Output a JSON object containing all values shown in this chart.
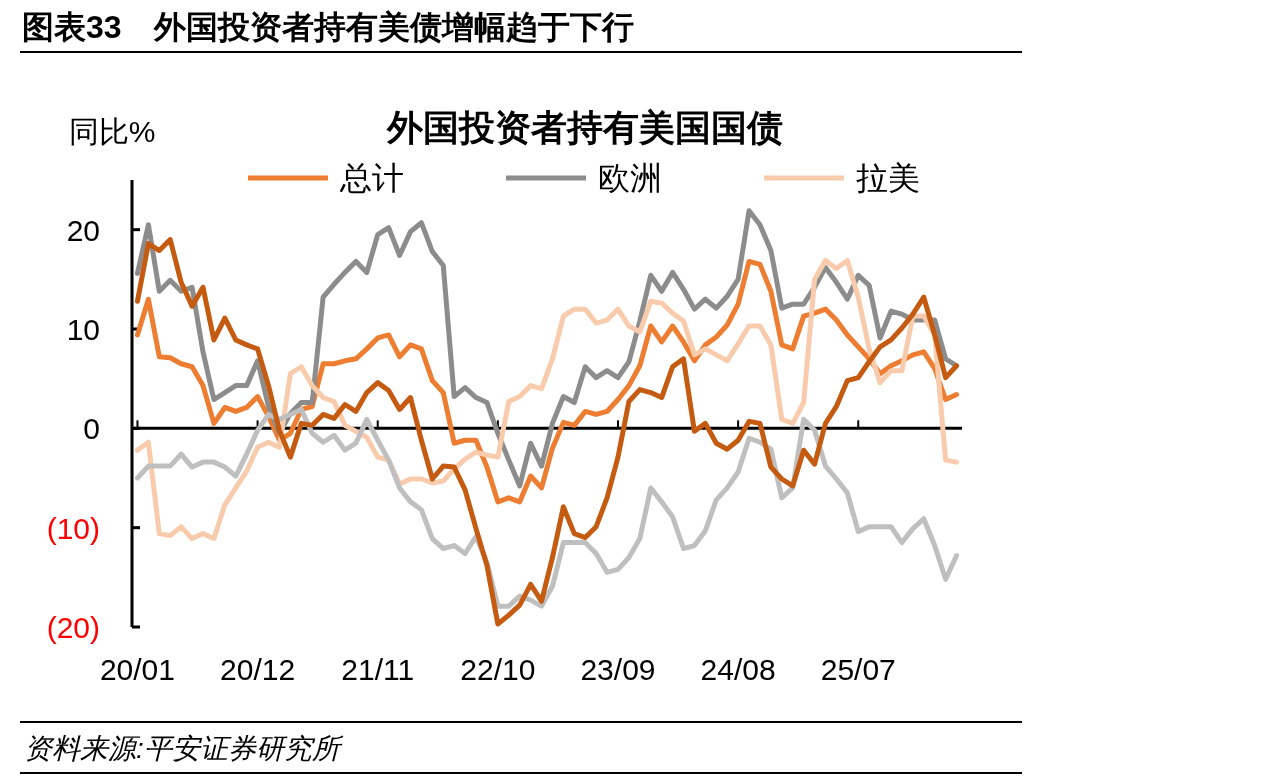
{
  "chart_data": {
    "type": "line",
    "title": "图表33　外国投资者持有美债增幅趋于下行",
    "subtitle": "外国投资者持有美国国债",
    "ylabel": "同比%",
    "annotations": [
      "资料来源:平安证券研究所"
    ],
    "categories": [
      "20/01",
      null,
      null,
      null,
      null,
      null,
      null,
      null,
      null,
      null,
      null,
      "20/12",
      null,
      null,
      null,
      null,
      null,
      null,
      null,
      null,
      null,
      null,
      "21/11",
      null,
      null,
      null,
      null,
      null,
      null,
      null,
      null,
      null,
      null,
      "22/10",
      null,
      null,
      null,
      null,
      null,
      null,
      null,
      null,
      null,
      null,
      "23/09",
      null,
      null,
      null,
      null,
      null,
      null,
      null,
      null,
      null,
      null,
      "24/08",
      null,
      null,
      null,
      null,
      null,
      null,
      null,
      null,
      null,
      null,
      "25/07",
      null,
      null,
      null,
      null,
      null,
      null,
      null,
      null,
      null
    ],
    "ylim": [
      -20,
      25
    ],
    "yticks": [
      20,
      10,
      0,
      {
        "value": -10,
        "label": "(10)"
      },
      {
        "value": -20,
        "label": "(20)"
      }
    ],
    "legend": "top",
    "series": [
      {
        "name": "总计",
        "color": "#ed7d31",
        "values": [
          9.4,
          13,
          7.2,
          7.1,
          6.5,
          6.2,
          4.3,
          0.5,
          2.1,
          1.7,
          2.1,
          3.2,
          1.2,
          -1.2,
          -0.5,
          1.9,
          2.2,
          6.5,
          6.5,
          6.8,
          7.0,
          8.0,
          9.1,
          9.4,
          7.2,
          8.4,
          8.0,
          4.8,
          3.6,
          -1.5,
          -1.2,
          -1.2,
          -3.9,
          -7.4,
          -7.0,
          -7.4,
          -4.8,
          -6.0,
          -2.0,
          0.6,
          0.3,
          1.7,
          1.4,
          1.7,
          2.9,
          4.3,
          6.3,
          10.3,
          8.7,
          10.3,
          8.7,
          6.8,
          8.4,
          9.2,
          10.4,
          12.5,
          16.8,
          16.5,
          13.8,
          8.4,
          8.0,
          11.3,
          11.6,
          12.0,
          10.9,
          9.4,
          8.2,
          7.0,
          5.5,
          6.3,
          6.8,
          7.4,
          7.7,
          6.0,
          2.9,
          3.4
        ]
      },
      {
        "name": "欧洲",
        "color": "#8c8c8c",
        "values": [
          15.6,
          20.5,
          13.8,
          14.9,
          13.8,
          14.2,
          7.7,
          2.9,
          3.6,
          4.3,
          4.3,
          6.8,
          2.2,
          -0.5,
          1.5,
          2.6,
          2.6,
          13.2,
          14.5,
          15.7,
          16.8,
          15.7,
          19.5,
          20.2,
          17.4,
          19.8,
          20.7,
          17.8,
          16.4,
          3.2,
          4.1,
          3.1,
          2.6,
          -0.5,
          -3.2,
          -5.8,
          -1.5,
          -3.8,
          0.5,
          3.2,
          2.6,
          6.2,
          5.1,
          5.8,
          5.1,
          6.7,
          10.8,
          15.4,
          13.8,
          15.7,
          14.0,
          12.0,
          13.0,
          12.1,
          13.3,
          15.0,
          21.9,
          20.5,
          17.9,
          12.1,
          12.5,
          12.5,
          14.2,
          16.2,
          14.7,
          13.0,
          15.4,
          14.4,
          9.1,
          11.8,
          11.5,
          10.9,
          10.9,
          10.9,
          7.0,
          6.3
        ]
      },
      {
        "name": "拉美",
        "color": "#f8cbad",
        "values": [
          -2.2,
          -1.4,
          -10.6,
          -10.8,
          -9.9,
          -11.1,
          -10.6,
          -11.1,
          -7.7,
          -6.0,
          -4.3,
          -1.9,
          -1.4,
          -1.9,
          5.5,
          6.2,
          4.3,
          3.1,
          2.7,
          0.3,
          -0.3,
          -0.9,
          -2.9,
          -3.2,
          -5.6,
          -5.1,
          -5.1,
          -5.5,
          -5.3,
          -4.1,
          -3.1,
          -2.4,
          -2.7,
          -2.9,
          2.7,
          3.2,
          4.3,
          4.0,
          7.0,
          11.3,
          12.0,
          12.0,
          10.6,
          10.9,
          12.0,
          10.3,
          9.7,
          12.8,
          12.6,
          11.6,
          10.8,
          7.4,
          8.0,
          7.4,
          6.8,
          8.5,
          10.3,
          10.3,
          8.4,
          0.9,
          0.5,
          2.6,
          15.0,
          16.9,
          16.1,
          16.9,
          13.2,
          8.0,
          4.6,
          5.8,
          5.8,
          11.3,
          11.3,
          9.4,
          -3.2,
          -3.4
        ]
      },
      {
        "color": "#bfbfbf",
        "values": [
          -5.0,
          -3.8,
          -3.8,
          -3.8,
          -2.6,
          -3.9,
          -3.4,
          -3.4,
          -3.9,
          -4.8,
          -2.6,
          -0.2,
          1.4,
          0.9,
          1.4,
          1.9,
          -0.5,
          -1.4,
          -0.7,
          -2.2,
          -1.5,
          0.9,
          -1.2,
          -3.2,
          -6.0,
          -7.4,
          -8.2,
          -11.1,
          -12.1,
          -11.8,
          -12.6,
          -10.9,
          -13.5,
          -17.9,
          -17.9,
          -16.9,
          -17.3,
          -17.9,
          -15.9,
          -11.5,
          -11.5,
          -11.5,
          -12.6,
          -14.5,
          -14.2,
          -13.0,
          -11.1,
          -6.0,
          -7.4,
          -8.9,
          -12.1,
          -11.8,
          -10.3,
          -7.2,
          -6.0,
          -4.4,
          -1.0,
          -1.4,
          -2.1,
          -7.0,
          -6.0,
          0.9,
          -0.2,
          -3.8,
          -5.1,
          -6.5,
          -10.4,
          -9.9,
          -9.9,
          -9.9,
          -11.5,
          -10.1,
          -9.1,
          -11.8,
          -15.2,
          -12.8
        ]
      },
      {
        "color": "#c55a11",
        "values": [
          12.8,
          18.6,
          17.9,
          19.0,
          14.7,
          12.3,
          14.2,
          8.9,
          11.1,
          8.9,
          8.4,
          8.0,
          4.3,
          -0.2,
          -2.9,
          0.5,
          0.3,
          1.4,
          1.0,
          2.4,
          1.7,
          3.6,
          4.6,
          3.8,
          1.9,
          3.1,
          -1.2,
          -5.1,
          -3.8,
          -3.9,
          -6.2,
          -10.1,
          -13.8,
          -19.7,
          -18.8,
          -17.8,
          -15.7,
          -17.4,
          -13.0,
          -7.9,
          -10.6,
          -11.0,
          -9.9,
          -7.0,
          -2.9,
          2.7,
          3.9,
          3.6,
          3.1,
          6.2,
          7.0,
          -0.3,
          0.5,
          -1.5,
          -2.1,
          -1.2,
          0.7,
          0.5,
          -3.9,
          -5.1,
          -5.8,
          -2.2,
          -3.6,
          0.5,
          2.2,
          4.8,
          5.1,
          6.7,
          8.2,
          8.9,
          10.1,
          11.5,
          13.2,
          9.4,
          5.1,
          6.3
        ]
      }
    ]
  }
}
